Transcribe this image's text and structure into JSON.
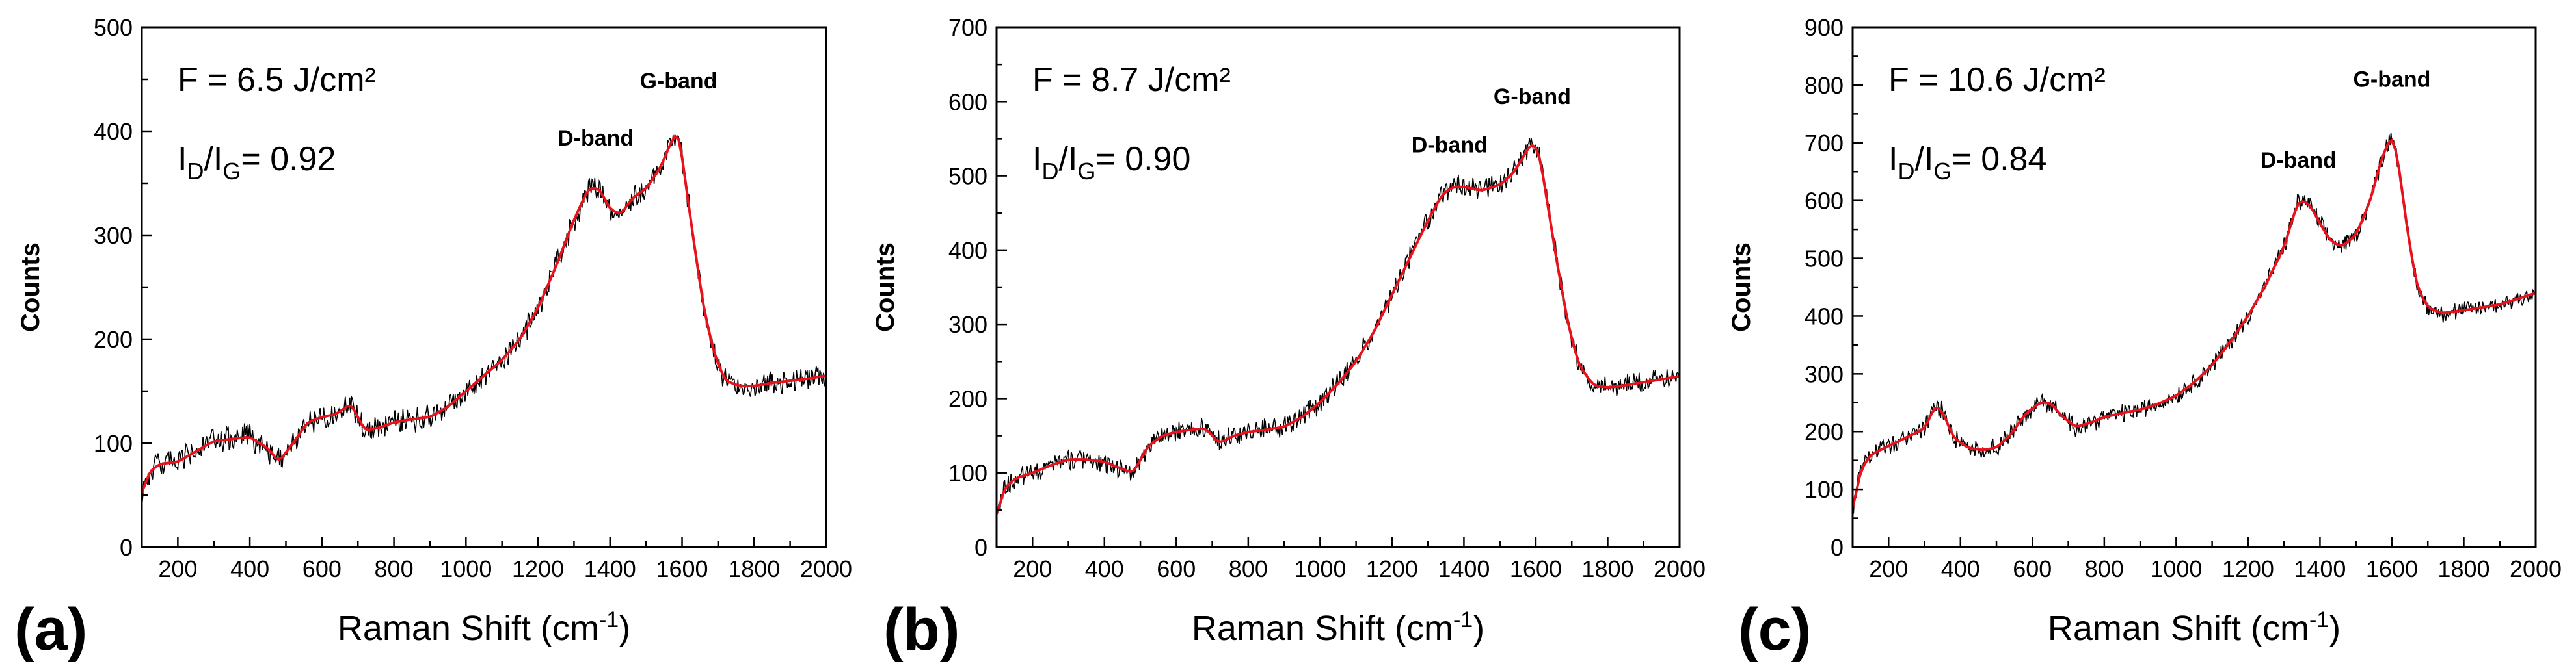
{
  "chart_data": [
    {
      "type": "line",
      "panel_label": "(a)",
      "xlabel": "Raman Shift (cm-1)",
      "xlabel_main": "Raman Shift (cm",
      "xlabel_sup": "-1",
      "xlabel_close": ")",
      "ylabel": "Counts",
      "xlim": [
        100,
        2000
      ],
      "ylim": [
        0,
        500
      ],
      "xticks": [
        200,
        400,
        600,
        800,
        1000,
        1200,
        1400,
        1600,
        1800,
        2000
      ],
      "yticks": [
        0,
        100,
        200,
        300,
        400,
        500
      ],
      "annotation_fluence": "F = 6.5 J/cm²",
      "annotation_ratio_prefix": "I",
      "annotation_ratio_d": "D",
      "annotation_ratio_mid": "/I",
      "annotation_ratio_g": "G",
      "annotation_ratio_value": "= 0.92",
      "ratio_value": 0.92,
      "bands": [
        {
          "label": "D-band",
          "x": 1360,
          "y": 360
        },
        {
          "label": "G-band",
          "x": 1590,
          "y": 415
        }
      ],
      "noise_amplitude": 10,
      "raw_color": "#000000",
      "fit_color": "#e8121c",
      "series": [
        {
          "name": "fit",
          "x": [
            100,
            120,
            150,
            200,
            250,
            300,
            350,
            400,
            450,
            480,
            520,
            560,
            600,
            640,
            680,
            720,
            760,
            800,
            850,
            900,
            950,
            1000,
            1050,
            1100,
            1150,
            1200,
            1250,
            1300,
            1340,
            1370,
            1400,
            1430,
            1460,
            1500,
            1540,
            1570,
            1590,
            1610,
            1630,
            1660,
            1690,
            1720,
            1760,
            1800,
            1850,
            1900,
            1950,
            2000
          ],
          "y": [
            50,
            72,
            80,
            82,
            92,
            102,
            104,
            106,
            95,
            82,
            100,
            120,
            125,
            128,
            138,
            112,
            115,
            120,
            123,
            125,
            135,
            150,
            165,
            180,
            200,
            230,
            270,
            315,
            345,
            345,
            325,
            320,
            335,
            345,
            365,
            390,
            400,
            350,
            300,
            230,
            185,
            160,
            155,
            155,
            158,
            160,
            162,
            165
          ]
        }
      ]
    },
    {
      "type": "line",
      "panel_label": "(b)",
      "xlabel": "Raman Shift (cm-1)",
      "xlabel_main": "Raman Shift (cm",
      "xlabel_sup": "-1",
      "xlabel_close": ")",
      "ylabel": "Counts",
      "xlim": [
        100,
        2000
      ],
      "ylim": [
        0,
        700
      ],
      "xticks": [
        200,
        400,
        600,
        800,
        1000,
        1200,
        1400,
        1600,
        1800,
        2000
      ],
      "yticks": [
        0,
        100,
        200,
        300,
        400,
        500,
        600,
        700
      ],
      "annotation_fluence": "F = 8.7 J/cm²",
      "annotation_ratio_prefix": "I",
      "annotation_ratio_d": "D",
      "annotation_ratio_mid": "/I",
      "annotation_ratio_g": "G",
      "annotation_ratio_value": "= 0.90",
      "ratio_value": 0.9,
      "bands": [
        {
          "label": "D-band",
          "x": 1360,
          "y": 495
        },
        {
          "label": "G-band",
          "x": 1590,
          "y": 560
        }
      ],
      "noise_amplitude": 12,
      "raw_color": "#000000",
      "fit_color": "#e8121c",
      "series": [
        {
          "name": "fit",
          "x": [
            100,
            120,
            150,
            200,
            250,
            300,
            350,
            400,
            450,
            480,
            520,
            560,
            600,
            640,
            680,
            720,
            760,
            800,
            850,
            900,
            950,
            1000,
            1050,
            1100,
            1150,
            1200,
            1250,
            1300,
            1340,
            1370,
            1400,
            1450,
            1500,
            1540,
            1570,
            1590,
            1610,
            1630,
            1660,
            1690,
            1720,
            1760,
            1800,
            1850,
            1900,
            1950,
            2000
          ],
          "y": [
            40,
            78,
            92,
            100,
            110,
            118,
            118,
            115,
            105,
            100,
            135,
            150,
            155,
            158,
            160,
            140,
            150,
            155,
            158,
            162,
            175,
            195,
            220,
            250,
            290,
            340,
            390,
            440,
            475,
            485,
            485,
            480,
            488,
            505,
            530,
            545,
            530,
            470,
            380,
            300,
            245,
            218,
            215,
            218,
            222,
            226,
            230
          ]
        }
      ]
    },
    {
      "type": "line",
      "panel_label": "(c)",
      "xlabel": "Raman Shift (cm-1)",
      "xlabel_main": "Raman Shift (cm",
      "xlabel_sup": "-1",
      "xlabel_close": ")",
      "ylabel": "Counts",
      "xlim": [
        100,
        2000
      ],
      "ylim": [
        0,
        900
      ],
      "xticks": [
        200,
        400,
        600,
        800,
        1000,
        1200,
        1400,
        1600,
        1800,
        2000
      ],
      "yticks": [
        0,
        100,
        200,
        300,
        400,
        500,
        600,
        700,
        800,
        900
      ],
      "annotation_fluence": "F = 10.6 J/cm²",
      "annotation_ratio_prefix": "I",
      "annotation_ratio_d": "D",
      "annotation_ratio_mid": "/I",
      "annotation_ratio_g": "G",
      "annotation_ratio_value": "= 0.84",
      "ratio_value": 0.84,
      "bands": [
        {
          "label": "D-band",
          "x": 1340,
          "y": 610
        },
        {
          "label": "G-band",
          "x": 1600,
          "y": 750
        }
      ],
      "noise_amplitude": 13,
      "raw_color": "#000000",
      "fit_color": "#e8121c",
      "series": [
        {
          "name": "fit",
          "x": [
            100,
            120,
            150,
            200,
            250,
            300,
            330,
            350,
            380,
            420,
            460,
            500,
            540,
            580,
            620,
            650,
            680,
            720,
            760,
            800,
            850,
            900,
            950,
            1000,
            1050,
            1100,
            1150,
            1200,
            1250,
            1300,
            1340,
            1370,
            1400,
            1430,
            1460,
            1500,
            1540,
            1570,
            1600,
            1620,
            1640,
            1670,
            1700,
            1740,
            1800,
            1850,
            1900,
            1950,
            2000
          ],
          "y": [
            60,
            130,
            160,
            175,
            190,
            205,
            245,
            235,
            190,
            172,
            168,
            172,
            195,
            230,
            250,
            250,
            228,
            208,
            215,
            225,
            232,
            238,
            248,
            262,
            285,
            315,
            355,
            400,
            455,
            520,
            600,
            595,
            560,
            530,
            520,
            540,
            600,
            670,
            715,
            660,
            560,
            450,
            415,
            405,
            410,
            415,
            420,
            430,
            440
          ]
        }
      ]
    }
  ]
}
